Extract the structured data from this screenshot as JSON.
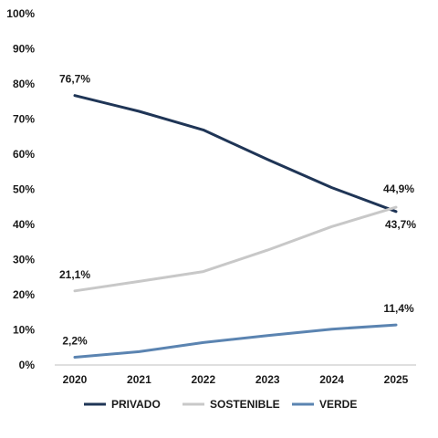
{
  "chart_data": {
    "type": "line",
    "x": [
      "2020",
      "2021",
      "2022",
      "2023",
      "2024",
      "2025"
    ],
    "ylim": [
      0,
      100
    ],
    "yticks": [
      "0%",
      "10%",
      "20%",
      "30%",
      "40%",
      "50%",
      "60%",
      "70%",
      "80%",
      "90%",
      "100%"
    ],
    "grid": false,
    "legend_position": "bottom",
    "series": [
      {
        "name": "PRIVADO",
        "color": "#1f3556",
        "values": [
          76.7,
          72.2,
          66.9,
          58.5,
          50.5,
          43.7
        ]
      },
      {
        "name": "SOSTENIBLE",
        "color": "#c8c8c8",
        "values": [
          21.1,
          23.8,
          26.6,
          32.7,
          39.4,
          44.9
        ]
      },
      {
        "name": "VERDE",
        "color": "#5b84b1",
        "values": [
          2.2,
          3.8,
          6.4,
          8.4,
          10.2,
          11.4
        ]
      }
    ],
    "data_labels": [
      {
        "series": 0,
        "index": 0,
        "text": "76,7%"
      },
      {
        "series": 0,
        "index": 5,
        "text": "43,7%"
      },
      {
        "series": 1,
        "index": 0,
        "text": "21,1%"
      },
      {
        "series": 1,
        "index": 5,
        "text": "44,9%"
      },
      {
        "series": 2,
        "index": 0,
        "text": "2,2%"
      },
      {
        "series": 2,
        "index": 5,
        "text": "11,4%"
      }
    ]
  }
}
